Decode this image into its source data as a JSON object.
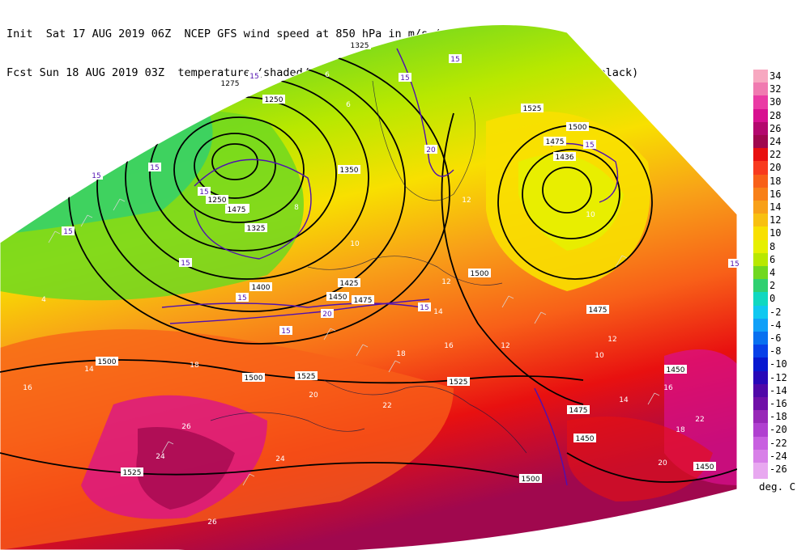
{
  "header": {
    "line1": "Init  Sat 17 AUG 2019 06Z  NCEP GFS wind speed at 850 hPa in m/s (contours/barbs)",
    "line2": "Fcst Sun 18 AUG 2019 03Z  temperature (shaded/dotted) and geopotential height at 850 hPa (black)"
  },
  "legend": {
    "units": "deg. C",
    "entries": [
      {
        "value": "34",
        "color": "#f7a8c0"
      },
      {
        "value": "32",
        "color": "#f07ab0"
      },
      {
        "value": "30",
        "color": "#ea3aa4"
      },
      {
        "value": "28",
        "color": "#d81090"
      },
      {
        "value": "26",
        "color": "#b4086e"
      },
      {
        "value": "24",
        "color": "#a0084e"
      },
      {
        "value": "22",
        "color": "#e81010"
      },
      {
        "value": "20",
        "color": "#f83a1e"
      },
      {
        "value": "18",
        "color": "#f86018"
      },
      {
        "value": "16",
        "color": "#f88018"
      },
      {
        "value": "14",
        "color": "#f8a018"
      },
      {
        "value": "12",
        "color": "#f8c010"
      },
      {
        "value": "10",
        "color": "#f8e000"
      },
      {
        "value": "8",
        "color": "#e6f000"
      },
      {
        "value": "6",
        "color": "#b8e800"
      },
      {
        "value": "4",
        "color": "#70d820"
      },
      {
        "value": "2",
        "color": "#30d070"
      },
      {
        "value": "0",
        "color": "#10d8c0"
      },
      {
        "value": "-2",
        "color": "#10c8f0"
      },
      {
        "value": "-4",
        "color": "#10a0f8"
      },
      {
        "value": "-6",
        "color": "#0870f0"
      },
      {
        "value": "-8",
        "color": "#0840e8"
      },
      {
        "value": "-10",
        "color": "#0818d0"
      },
      {
        "value": "-12",
        "color": "#2808b8"
      },
      {
        "value": "-14",
        "color": "#5008a8"
      },
      {
        "value": "-16",
        "color": "#7010a8"
      },
      {
        "value": "-18",
        "color": "#9828b8"
      },
      {
        "value": "-20",
        "color": "#b040d0"
      },
      {
        "value": "-22",
        "color": "#c860e0"
      },
      {
        "value": "-24",
        "color": "#d880e8"
      },
      {
        "value": "-26",
        "color": "#e8a8f0"
      }
    ]
  },
  "map": {
    "height_labels": [
      {
        "text": "1325"
      },
      {
        "text": "1275"
      },
      {
        "text": "1250"
      },
      {
        "text": "1250"
      },
      {
        "text": "1275"
      },
      {
        "text": "1325"
      },
      {
        "text": "1350"
      },
      {
        "text": "1400"
      },
      {
        "text": "1425"
      },
      {
        "text": "1475"
      },
      {
        "text": "1450"
      },
      {
        "text": "1500"
      },
      {
        "text": "1500"
      },
      {
        "text": "1525"
      },
      {
        "text": "1500"
      },
      {
        "text": "1475"
      },
      {
        "text": "1525"
      },
      {
        "text": "1500"
      },
      {
        "text": "1525"
      },
      {
        "text": "1450"
      },
      {
        "text": "1475"
      },
      {
        "text": "1450"
      },
      {
        "text": "1450"
      },
      {
        "text": "1500"
      },
      {
        "text": "1525"
      },
      {
        "text": "1475"
      },
      {
        "text": "1475"
      },
      {
        "text": "1436"
      }
    ],
    "wind_labels": [
      {
        "text": "15"
      },
      {
        "text": "15"
      },
      {
        "text": "15"
      },
      {
        "text": "15"
      },
      {
        "text": "15"
      },
      {
        "text": "15"
      },
      {
        "text": "15"
      },
      {
        "text": "20"
      },
      {
        "text": "15"
      },
      {
        "text": "20"
      },
      {
        "text": "15"
      },
      {
        "text": "15"
      },
      {
        "text": "15"
      },
      {
        "text": "15"
      },
      {
        "text": "15"
      }
    ],
    "temp_labels": [
      {
        "text": "6"
      },
      {
        "text": "6"
      },
      {
        "text": "8"
      },
      {
        "text": "10"
      },
      {
        "text": "12"
      },
      {
        "text": "14"
      },
      {
        "text": "16"
      },
      {
        "text": "18"
      },
      {
        "text": "20"
      },
      {
        "text": "22"
      },
      {
        "text": "24"
      },
      {
        "text": "26"
      },
      {
        "text": "12"
      },
      {
        "text": "10"
      },
      {
        "text": "14"
      },
      {
        "text": "16"
      },
      {
        "text": "18"
      },
      {
        "text": "20"
      },
      {
        "text": "4"
      },
      {
        "text": "16"
      },
      {
        "text": "18"
      },
      {
        "text": "14"
      },
      {
        "text": "12"
      },
      {
        "text": "24"
      },
      {
        "text": "26"
      },
      {
        "text": "10"
      },
      {
        "text": "12"
      },
      {
        "text": "22"
      }
    ]
  }
}
